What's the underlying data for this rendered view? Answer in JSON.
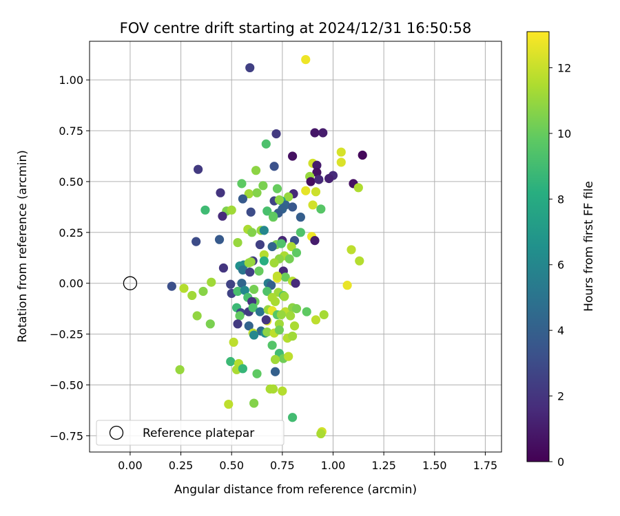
{
  "chart_data": {
    "type": "scatter",
    "title": "FOV centre drift starting at 2024/12/31 16:50:58",
    "xlabel": "Angular distance from reference (arcmin)",
    "ylabel": "Rotation from reference (arcmin)",
    "colorbar_label": "Hours from first FF file",
    "xlim": [
      -0.2,
      1.83
    ],
    "ylim": [
      -0.83,
      1.19
    ],
    "xticks": [
      "0.00",
      "0.25",
      "0.50",
      "0.75",
      "1.00",
      "1.25",
      "1.50",
      "1.75"
    ],
    "yticks": [
      "−0.75",
      "−0.50",
      "−0.25",
      "0.00",
      "0.25",
      "0.50",
      "0.75",
      "1.00"
    ],
    "colorbar_ticks": [
      "0",
      "2",
      "4",
      "6",
      "8",
      "10",
      "12"
    ],
    "color_range": [
      0,
      13.1
    ],
    "grid": true,
    "legend": {
      "entry": "Reference platepar",
      "placement": "lower-left"
    },
    "reference_point": {
      "x": 0.0,
      "y": 0.0
    },
    "points": [
      {
        "x": 0.59,
        "y": 1.06,
        "t": 2.5
      },
      {
        "x": 0.865,
        "y": 1.1,
        "t": 12.8
      },
      {
        "x": 0.72,
        "y": 0.735,
        "t": 2.2
      },
      {
        "x": 0.91,
        "y": 0.74,
        "t": 0.8
      },
      {
        "x": 0.95,
        "y": 0.74,
        "t": 1.0
      },
      {
        "x": 0.67,
        "y": 0.685,
        "t": 9.3
      },
      {
        "x": 1.04,
        "y": 0.645,
        "t": 12.3
      },
      {
        "x": 1.145,
        "y": 0.63,
        "t": 0.3
      },
      {
        "x": 0.8,
        "y": 0.625,
        "t": 0.6
      },
      {
        "x": 0.9,
        "y": 0.59,
        "t": 12.2
      },
      {
        "x": 0.92,
        "y": 0.58,
        "t": 1.0
      },
      {
        "x": 1.04,
        "y": 0.595,
        "t": 12.4
      },
      {
        "x": 0.71,
        "y": 0.575,
        "t": 3.3
      },
      {
        "x": 0.62,
        "y": 0.555,
        "t": 10.8
      },
      {
        "x": 0.335,
        "y": 0.56,
        "t": 2.2
      },
      {
        "x": 0.92,
        "y": 0.545,
        "t": 0.6
      },
      {
        "x": 0.885,
        "y": 0.525,
        "t": 11.0
      },
      {
        "x": 1.0,
        "y": 0.53,
        "t": 1.6
      },
      {
        "x": 0.98,
        "y": 0.515,
        "t": 1.2
      },
      {
        "x": 0.89,
        "y": 0.5,
        "t": 0.5
      },
      {
        "x": 0.93,
        "y": 0.51,
        "t": 1.5
      },
      {
        "x": 1.1,
        "y": 0.49,
        "t": 0.6
      },
      {
        "x": 1.125,
        "y": 0.47,
        "t": 11.5
      },
      {
        "x": 0.55,
        "y": 0.49,
        "t": 9.8
      },
      {
        "x": 0.655,
        "y": 0.48,
        "t": 10.4
      },
      {
        "x": 0.725,
        "y": 0.465,
        "t": 10.0
      },
      {
        "x": 0.445,
        "y": 0.445,
        "t": 2.0
      },
      {
        "x": 0.585,
        "y": 0.44,
        "t": 11.2
      },
      {
        "x": 0.625,
        "y": 0.445,
        "t": 10.6
      },
      {
        "x": 0.805,
        "y": 0.44,
        "t": 1.5
      },
      {
        "x": 0.865,
        "y": 0.455,
        "t": 12.6
      },
      {
        "x": 0.915,
        "y": 0.45,
        "t": 12.1
      },
      {
        "x": 0.78,
        "y": 0.425,
        "t": 11.0
      },
      {
        "x": 0.555,
        "y": 0.415,
        "t": 3.7
      },
      {
        "x": 0.71,
        "y": 0.405,
        "t": 2.6
      },
      {
        "x": 0.745,
        "y": 0.405,
        "t": 7.8
      },
      {
        "x": 0.765,
        "y": 0.385,
        "t": 4.2
      },
      {
        "x": 0.9,
        "y": 0.385,
        "t": 12.2
      },
      {
        "x": 0.735,
        "y": 0.41,
        "t": 10.8
      },
      {
        "x": 0.8,
        "y": 0.375,
        "t": 3.6
      },
      {
        "x": 0.94,
        "y": 0.365,
        "t": 9.6
      },
      {
        "x": 0.75,
        "y": 0.365,
        "t": 4.1
      },
      {
        "x": 0.37,
        "y": 0.36,
        "t": 8.9
      },
      {
        "x": 0.475,
        "y": 0.355,
        "t": 10.5
      },
      {
        "x": 0.5,
        "y": 0.36,
        "t": 11.2
      },
      {
        "x": 0.595,
        "y": 0.35,
        "t": 3.0
      },
      {
        "x": 0.675,
        "y": 0.355,
        "t": 9.2
      },
      {
        "x": 0.73,
        "y": 0.345,
        "t": 3.8
      },
      {
        "x": 0.705,
        "y": 0.325,
        "t": 10.2
      },
      {
        "x": 0.455,
        "y": 0.33,
        "t": 1.6
      },
      {
        "x": 0.84,
        "y": 0.325,
        "t": 3.9
      },
      {
        "x": 0.705,
        "y": 0.33,
        "t": 9.8
      },
      {
        "x": 0.58,
        "y": 0.265,
        "t": 11.4
      },
      {
        "x": 0.6,
        "y": 0.25,
        "t": 10.6
      },
      {
        "x": 0.645,
        "y": 0.26,
        "t": 11.0
      },
      {
        "x": 0.66,
        "y": 0.26,
        "t": 6.0
      },
      {
        "x": 0.84,
        "y": 0.25,
        "t": 9.4
      },
      {
        "x": 0.895,
        "y": 0.23,
        "t": 12.8
      },
      {
        "x": 0.91,
        "y": 0.21,
        "t": 1.0
      },
      {
        "x": 0.44,
        "y": 0.215,
        "t": 3.7
      },
      {
        "x": 0.325,
        "y": 0.205,
        "t": 3.0
      },
      {
        "x": 0.75,
        "y": 0.21,
        "t": 1.4
      },
      {
        "x": 0.81,
        "y": 0.21,
        "t": 3.3
      },
      {
        "x": 0.64,
        "y": 0.19,
        "t": 2.5
      },
      {
        "x": 0.53,
        "y": 0.2,
        "t": 11.0
      },
      {
        "x": 0.72,
        "y": 0.19,
        "t": 10.4
      },
      {
        "x": 0.745,
        "y": 0.195,
        "t": 9.4
      },
      {
        "x": 0.7,
        "y": 0.18,
        "t": 4.2
      },
      {
        "x": 0.795,
        "y": 0.18,
        "t": 11.4
      },
      {
        "x": 0.82,
        "y": 0.15,
        "t": 9.8
      },
      {
        "x": 1.09,
        "y": 0.165,
        "t": 11.8
      },
      {
        "x": 0.66,
        "y": 0.14,
        "t": 11.6
      },
      {
        "x": 0.76,
        "y": 0.135,
        "t": 11.4
      },
      {
        "x": 0.735,
        "y": 0.12,
        "t": 10.8
      },
      {
        "x": 0.785,
        "y": 0.12,
        "t": 10.3
      },
      {
        "x": 1.13,
        "y": 0.11,
        "t": 11.6
      },
      {
        "x": 0.66,
        "y": 0.11,
        "t": 8.2
      },
      {
        "x": 0.71,
        "y": 0.1,
        "t": 11.2
      },
      {
        "x": 0.56,
        "y": 0.09,
        "t": 6.0
      },
      {
        "x": 0.54,
        "y": 0.085,
        "t": 6.5
      },
      {
        "x": 0.605,
        "y": 0.11,
        "t": 2.3
      },
      {
        "x": 0.585,
        "y": 0.1,
        "t": 11.0
      },
      {
        "x": 0.595,
        "y": 0.105,
        "t": 11.0
      },
      {
        "x": 0.46,
        "y": 0.075,
        "t": 2.0
      },
      {
        "x": 0.555,
        "y": 0.065,
        "t": 5.0
      },
      {
        "x": 0.59,
        "y": 0.055,
        "t": 2.5
      },
      {
        "x": 0.635,
        "y": 0.06,
        "t": 10.0
      },
      {
        "x": 0.755,
        "y": 0.06,
        "t": 1.5
      },
      {
        "x": 0.725,
        "y": 0.025,
        "t": 12.6
      },
      {
        "x": 0.765,
        "y": 0.03,
        "t": 10.1
      },
      {
        "x": 0.8,
        "y": 0.01,
        "t": 11.6
      },
      {
        "x": 0.815,
        "y": 0.0,
        "t": 1.6
      },
      {
        "x": 0.725,
        "y": 0.035,
        "t": 11.9
      },
      {
        "x": 0.205,
        "y": -0.015,
        "t": 3.2
      },
      {
        "x": 0.265,
        "y": -0.025,
        "t": 11.6
      },
      {
        "x": 0.4,
        "y": 0.005,
        "t": 11.2
      },
      {
        "x": 0.495,
        "y": -0.005,
        "t": 2.6
      },
      {
        "x": 0.55,
        "y": 0.0,
        "t": 4.3
      },
      {
        "x": 0.68,
        "y": 0.0,
        "t": 5.5
      },
      {
        "x": 0.695,
        "y": -0.01,
        "t": 4.0
      },
      {
        "x": 1.07,
        "y": -0.01,
        "t": 12.7
      },
      {
        "x": 0.305,
        "y": -0.06,
        "t": 11.2
      },
      {
        "x": 0.36,
        "y": -0.04,
        "t": 10.7
      },
      {
        "x": 0.5,
        "y": -0.05,
        "t": 2.6
      },
      {
        "x": 0.53,
        "y": -0.04,
        "t": 9.2
      },
      {
        "x": 0.565,
        "y": -0.035,
        "t": 6.1
      },
      {
        "x": 0.61,
        "y": -0.03,
        "t": 10.3
      },
      {
        "x": 0.675,
        "y": -0.04,
        "t": 9.4
      },
      {
        "x": 0.73,
        "y": -0.045,
        "t": 11.2
      },
      {
        "x": 0.7,
        "y": -0.07,
        "t": 11.4
      },
      {
        "x": 0.755,
        "y": -0.06,
        "t": 9.7
      },
      {
        "x": 0.76,
        "y": -0.065,
        "t": 11.1
      },
      {
        "x": 0.58,
        "y": -0.07,
        "t": 9.2
      },
      {
        "x": 0.615,
        "y": -0.09,
        "t": 10.1
      },
      {
        "x": 0.715,
        "y": -0.09,
        "t": 11.4
      },
      {
        "x": 0.6,
        "y": -0.09,
        "t": 2.0
      },
      {
        "x": 0.525,
        "y": -0.12,
        "t": 8.8
      },
      {
        "x": 0.545,
        "y": -0.145,
        "t": 2.8
      },
      {
        "x": 0.585,
        "y": -0.14,
        "t": 2.3
      },
      {
        "x": 0.605,
        "y": -0.12,
        "t": 9.4
      },
      {
        "x": 0.64,
        "y": -0.14,
        "t": 5.0
      },
      {
        "x": 0.68,
        "y": -0.13,
        "t": 11.0
      },
      {
        "x": 0.7,
        "y": -0.135,
        "t": 12.6
      },
      {
        "x": 0.725,
        "y": -0.155,
        "t": 9.6
      },
      {
        "x": 0.765,
        "y": -0.14,
        "t": 11.8
      },
      {
        "x": 0.8,
        "y": -0.12,
        "t": 10.8
      },
      {
        "x": 0.82,
        "y": -0.125,
        "t": 10.4
      },
      {
        "x": 0.87,
        "y": -0.14,
        "t": 9.8
      },
      {
        "x": 0.745,
        "y": -0.155,
        "t": 11.0
      },
      {
        "x": 0.955,
        "y": -0.155,
        "t": 11.3
      },
      {
        "x": 0.915,
        "y": -0.18,
        "t": 11.8
      },
      {
        "x": 0.79,
        "y": -0.16,
        "t": 11.2
      },
      {
        "x": 0.33,
        "y": -0.16,
        "t": 10.9
      },
      {
        "x": 0.54,
        "y": -0.16,
        "t": 9.9
      },
      {
        "x": 0.675,
        "y": -0.185,
        "t": 12.5
      },
      {
        "x": 0.67,
        "y": -0.18,
        "t": 2.0
      },
      {
        "x": 0.53,
        "y": -0.2,
        "t": 2.2
      },
      {
        "x": 0.395,
        "y": -0.2,
        "t": 10.4
      },
      {
        "x": 0.585,
        "y": -0.21,
        "t": 4.2
      },
      {
        "x": 0.735,
        "y": -0.2,
        "t": 11.2
      },
      {
        "x": 0.81,
        "y": -0.21,
        "t": 11.4
      },
      {
        "x": 0.645,
        "y": -0.235,
        "t": 4.5
      },
      {
        "x": 0.665,
        "y": -0.245,
        "t": 6.3
      },
      {
        "x": 0.675,
        "y": -0.24,
        "t": 10.8
      },
      {
        "x": 0.71,
        "y": -0.245,
        "t": 11.8
      },
      {
        "x": 0.735,
        "y": -0.23,
        "t": 10.2
      },
      {
        "x": 0.605,
        "y": -0.245,
        "t": 11.8
      },
      {
        "x": 0.61,
        "y": -0.255,
        "t": 6.0
      },
      {
        "x": 0.775,
        "y": -0.27,
        "t": 11.6
      },
      {
        "x": 0.8,
        "y": -0.26,
        "t": 11.2
      },
      {
        "x": 0.51,
        "y": -0.29,
        "t": 11.8
      },
      {
        "x": 0.7,
        "y": -0.305,
        "t": 9.5
      },
      {
        "x": 0.735,
        "y": -0.345,
        "t": 9.0
      },
      {
        "x": 0.755,
        "y": -0.37,
        "t": 10.2
      },
      {
        "x": 0.78,
        "y": -0.36,
        "t": 11.8
      },
      {
        "x": 0.715,
        "y": -0.375,
        "t": 11.2
      },
      {
        "x": 0.495,
        "y": -0.385,
        "t": 8.8
      },
      {
        "x": 0.535,
        "y": -0.395,
        "t": 11.6
      },
      {
        "x": 0.245,
        "y": -0.425,
        "t": 11.0
      },
      {
        "x": 0.525,
        "y": -0.425,
        "t": 11.4
      },
      {
        "x": 0.555,
        "y": -0.42,
        "t": 8.6
      },
      {
        "x": 0.625,
        "y": -0.445,
        "t": 9.8
      },
      {
        "x": 0.715,
        "y": -0.435,
        "t": 4.0
      },
      {
        "x": 0.69,
        "y": -0.52,
        "t": 11.4
      },
      {
        "x": 0.705,
        "y": -0.52,
        "t": 11.4
      },
      {
        "x": 0.75,
        "y": -0.53,
        "t": 11.6
      },
      {
        "x": 0.485,
        "y": -0.595,
        "t": 11.8
      },
      {
        "x": 0.61,
        "y": -0.59,
        "t": 10.6
      },
      {
        "x": 0.8,
        "y": -0.66,
        "t": 9.0
      },
      {
        "x": 0.945,
        "y": -0.73,
        "t": 12.2
      },
      {
        "x": 0.94,
        "y": -0.74,
        "t": 11.4
      }
    ]
  }
}
